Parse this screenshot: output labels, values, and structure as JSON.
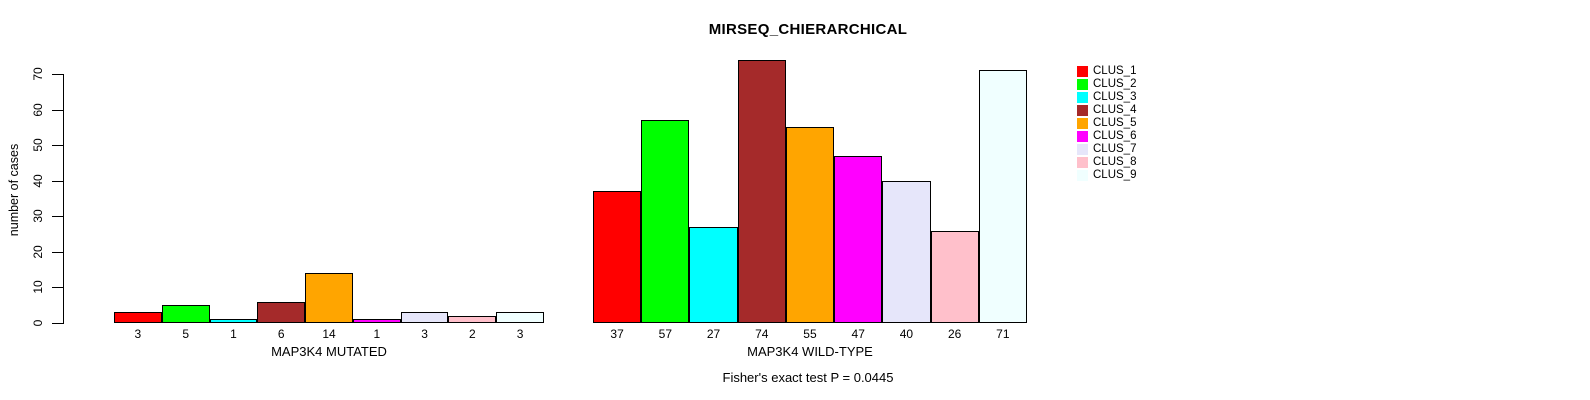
{
  "title": "MIRSEQ_CHIERARCHICAL",
  "footer": "Fisher's exact test P = 0.0445",
  "chart_data": {
    "type": "bar",
    "title": "MIRSEQ_CHIERARCHICAL",
    "subtitle": "Fisher's exact test P = 0.0445",
    "ylabel": "number of cases",
    "xlabel": "",
    "ylim": [
      0,
      70
    ],
    "yticks": [
      0,
      10,
      20,
      30,
      40,
      50,
      60,
      70
    ],
    "grid": "off",
    "legend_position": "top-right",
    "legend": [
      "CLUS_1",
      "CLUS_2",
      "CLUS_3",
      "CLUS_4",
      "CLUS_5",
      "CLUS_6",
      "CLUS_7",
      "CLUS_8",
      "CLUS_9"
    ],
    "series_colors": [
      "#FF0000",
      "#00FF00",
      "#00FFFF",
      "#A52A2A",
      "#FFA500",
      "#FF00FF",
      "#E6E6FA",
      "#FFC0CB",
      "#F0FFFF"
    ],
    "bar_border_color": "#000000",
    "groups": [
      {
        "label": "MAP3K4 MUTATED",
        "categories": [
          "CLUS_1",
          "CLUS_2",
          "CLUS_3",
          "CLUS_4",
          "CLUS_5",
          "CLUS_6",
          "CLUS_7",
          "CLUS_8",
          "CLUS_9"
        ],
        "values": [
          3,
          5,
          1,
          6,
          14,
          1,
          3,
          2,
          3
        ]
      },
      {
        "label": "MAP3K4 WILD-TYPE",
        "categories": [
          "CLUS_1",
          "CLUS_2",
          "CLUS_3",
          "CLUS_4",
          "CLUS_5",
          "CLUS_6",
          "CLUS_7",
          "CLUS_8",
          "CLUS_9"
        ],
        "values": [
          37,
          57,
          27,
          74,
          55,
          47,
          40,
          26,
          71
        ]
      }
    ]
  }
}
